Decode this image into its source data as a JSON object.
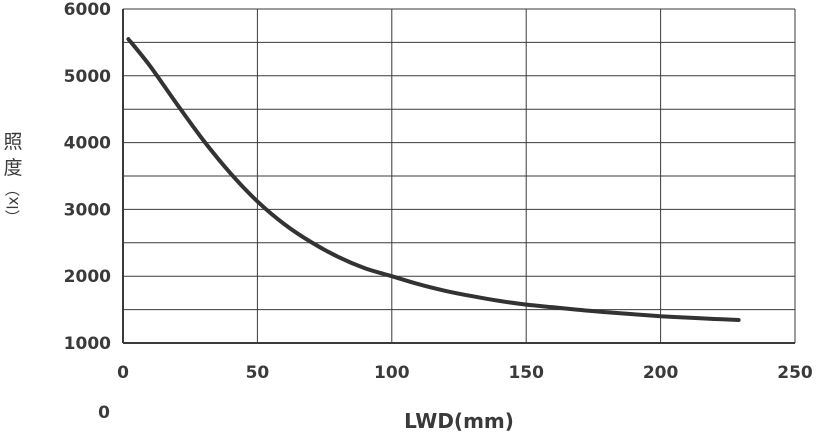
{
  "chart_data": {
    "type": "line",
    "title": "",
    "xlabel": "LWD(mm)",
    "ylabel": "照度（lx）",
    "ylabel_parts": [
      "照",
      "度",
      "（lx）"
    ],
    "xlim": [
      0,
      250
    ],
    "ylim": [
      1000,
      6000
    ],
    "x_ticks": [
      0,
      50,
      100,
      150,
      200,
      250
    ],
    "x_tick_labels": [
      "0",
      "50",
      "100",
      "150",
      "200",
      "250"
    ],
    "y_ticks": [
      1000,
      2000,
      3000,
      4000,
      5000,
      6000
    ],
    "y_tick_labels": [
      "1000",
      "2000",
      "3000",
      "4000",
      "5000",
      "6000"
    ],
    "extra_label": "0",
    "grid": true,
    "line_color": "#333333",
    "series": [
      {
        "x": [
          2,
          10,
          20,
          30,
          40,
          50,
          60,
          70,
          80,
          90,
          100,
          110,
          120,
          130,
          140,
          150,
          160,
          170,
          180,
          190,
          200,
          210,
          220,
          229
        ],
        "y": [
          5550,
          5150,
          4580,
          4030,
          3540,
          3120,
          2780,
          2510,
          2290,
          2120,
          2000,
          1880,
          1780,
          1700,
          1630,
          1575,
          1535,
          1495,
          1460,
          1430,
          1400,
          1380,
          1360,
          1345
        ]
      }
    ]
  }
}
